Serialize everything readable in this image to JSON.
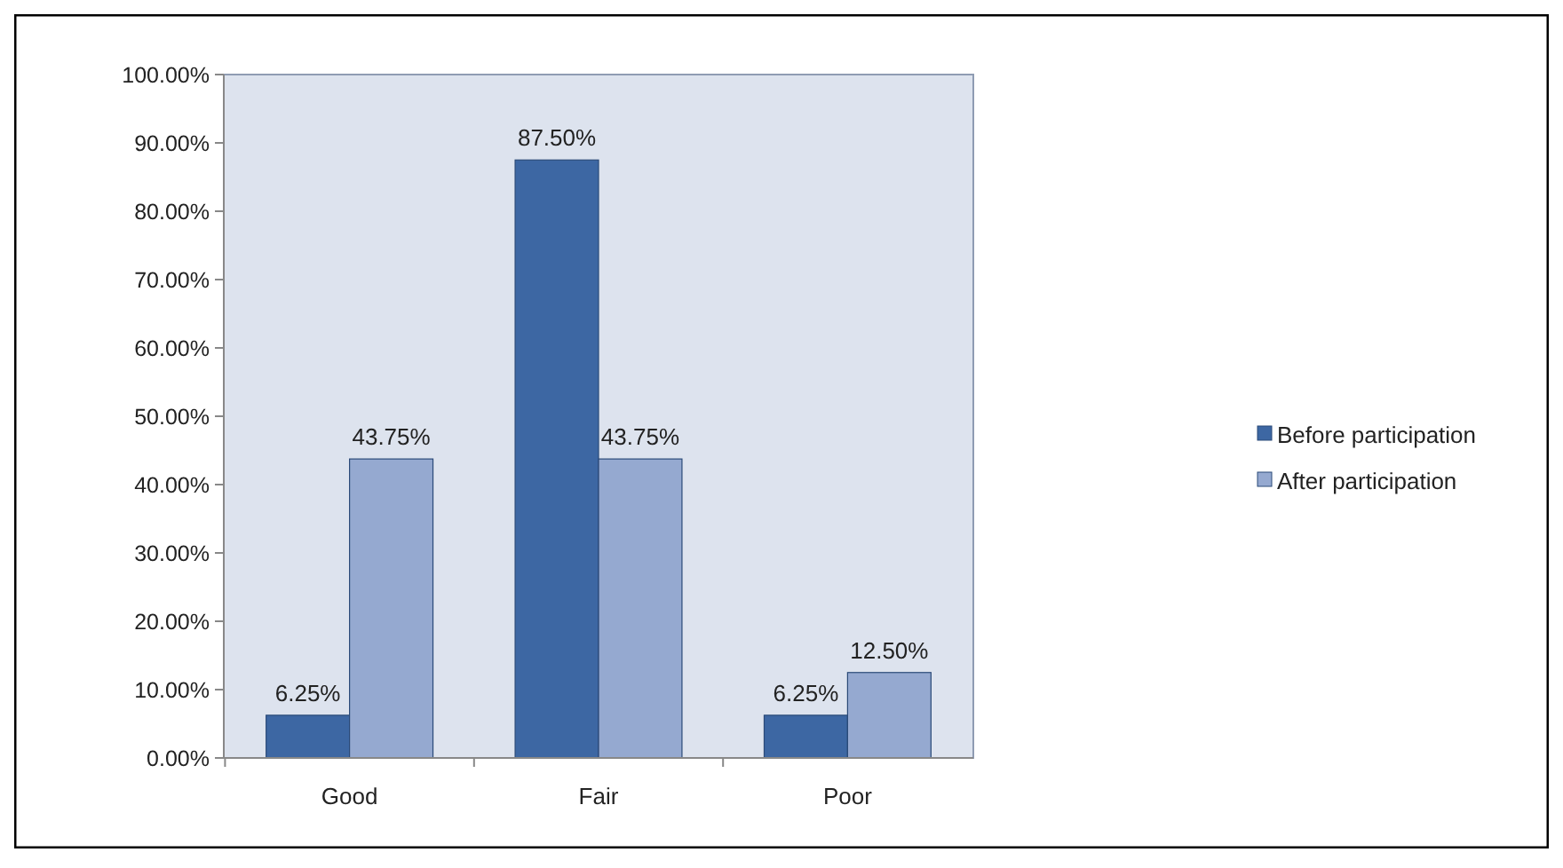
{
  "chart_data": {
    "type": "bar",
    "categories": [
      "Good",
      "Fair",
      "Poor"
    ],
    "series": [
      {
        "name": "Before participation",
        "color": "#3d67a3",
        "values": [
          6.25,
          87.5,
          6.25
        ],
        "value_labels": [
          "6.25%",
          "87.50%",
          "6.25%"
        ]
      },
      {
        "name": "After participation",
        "color": "#95a9d0",
        "values": [
          43.75,
          43.75,
          12.5
        ],
        "value_labels": [
          "43.75%",
          "43.75%",
          "12.50%"
        ]
      }
    ],
    "ylim": [
      0,
      100
    ],
    "yticks": [
      {
        "value": 0,
        "label": "0.00%"
      },
      {
        "value": 10,
        "label": "10.00%"
      },
      {
        "value": 20,
        "label": "20.00%"
      },
      {
        "value": 30,
        "label": "30.00%"
      },
      {
        "value": 40,
        "label": "40.00%"
      },
      {
        "value": 50,
        "label": "50.00%"
      },
      {
        "value": 60,
        "label": "60.00%"
      },
      {
        "value": 70,
        "label": "70.00%"
      },
      {
        "value": 80,
        "label": "80.00%"
      },
      {
        "value": 90,
        "label": "90.00%"
      },
      {
        "value": 100,
        "label": "100.00%"
      }
    ],
    "grid": false,
    "legend": "right"
  }
}
